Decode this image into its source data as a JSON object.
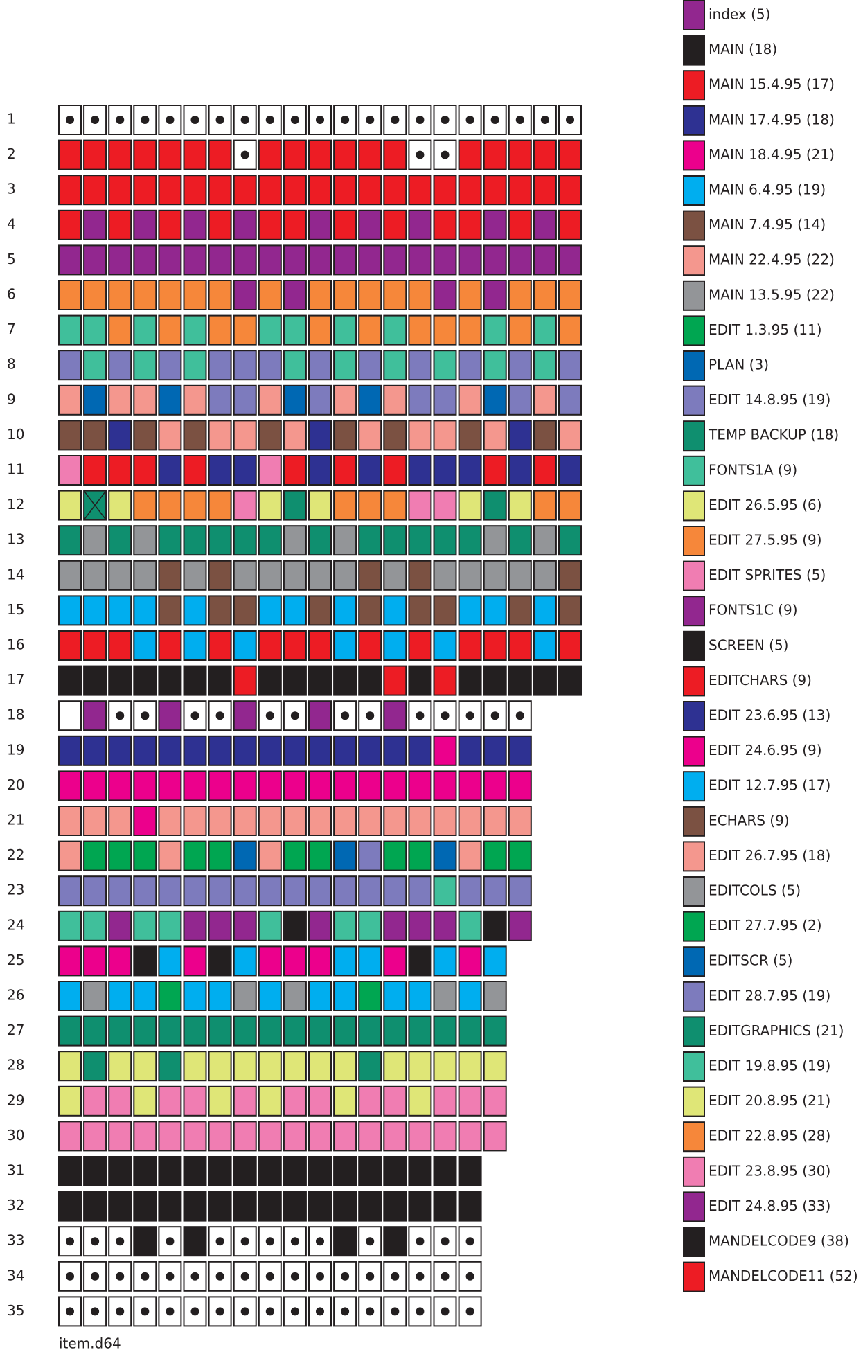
{
  "legend": [
    {
      "label": "index (5)",
      "color": "#92278f"
    },
    {
      "label": "MAIN (18)",
      "color": "#231f20"
    },
    {
      "label": "MAIN 15.4.95 (17)",
      "color": "#ed1c24"
    },
    {
      "label": "MAIN 17.4.95 (18)",
      "color": "#2e3192"
    },
    {
      "label": "MAIN 18.4.95 (21)",
      "color": "#ec008c"
    },
    {
      "label": "MAIN 6.4.95 (19)",
      "color": "#00aeef"
    },
    {
      "label": "MAIN 7.4.95 (14)",
      "color": "#7b5142"
    },
    {
      "label": "MAIN 22.4.95 (22)",
      "color": "#f4978e"
    },
    {
      "label": "MAIN 13.5.95 (22)",
      "color": "#939598"
    },
    {
      "label": "EDIT 1.3.95 (11)",
      "color": "#00a651"
    },
    {
      "label": "PLAN (3)",
      "color": "#0068b3"
    },
    {
      "label": "EDIT 14.8.95 (19)",
      "color": "#7d7bbd"
    },
    {
      "label": "TEMP BACKUP (18)",
      "color": "#0f8f6f"
    },
    {
      "label": "FONTS1A (9)",
      "color": "#40bf9b"
    },
    {
      "label": "EDIT 26.5.95 (6)",
      "color": "#dfe677"
    },
    {
      "label": "EDIT 27.5.95 (9)",
      "color": "#f6873a"
    },
    {
      "label": "EDIT SPRITES (5)",
      "color": "#f07db2"
    },
    {
      "label": "FONTS1C (9)",
      "color": "#92278f"
    },
    {
      "label": "SCREEN (5)",
      "color": "#231f20"
    },
    {
      "label": "EDITCHARS (9)",
      "color": "#ed1c24"
    },
    {
      "label": "EDIT 23.6.95 (13)",
      "color": "#2e3192"
    },
    {
      "label": "EDIT 24.6.95 (9)",
      "color": "#ec008c"
    },
    {
      "label": "EDIT 12.7.95 (17)",
      "color": "#00aeef"
    },
    {
      "label": "ECHARS (9)",
      "color": "#7b5142"
    },
    {
      "label": "EDIT 26.7.95 (18)",
      "color": "#f4978e"
    },
    {
      "label": "EDITCOLS (5)",
      "color": "#939598"
    },
    {
      "label": "EDIT 27.7.95 (2)",
      "color": "#00a651"
    },
    {
      "label": "EDITSCR (5)",
      "color": "#0068b3"
    },
    {
      "label": "EDIT 28.7.95 (19)",
      "color": "#7d7bbd"
    },
    {
      "label": "EDITGRAPHICS (21)",
      "color": "#0f8f6f"
    },
    {
      "label": "EDIT 19.8.95 (19)",
      "color": "#40bf9b"
    },
    {
      "label": "EDIT 20.8.95 (21)",
      "color": "#dfe677"
    },
    {
      "label": "EDIT 22.8.95 (28)",
      "color": "#f6873a"
    },
    {
      "label": "EDIT 23.8.95 (30)",
      "color": "#f07db2"
    },
    {
      "label": "EDIT 24.8.95 (33)",
      "color": "#92278f"
    },
    {
      "label": "MANDELCODE9 (38)",
      "color": "#231f20"
    },
    {
      "label": "MANDELCODE11 (52)",
      "color": "#ed1c24"
    }
  ],
  "rows": [
    {
      "label": "1",
      "cells": [
        null,
        null,
        null,
        null,
        null,
        null,
        null,
        null,
        null,
        null,
        null,
        null,
        null,
        null,
        null,
        null,
        null,
        null,
        null,
        null,
        null
      ]
    },
    {
      "label": "2",
      "cells": [
        "#ed1c24",
        "#ed1c24",
        "#ed1c24",
        "#ed1c24",
        "#ed1c24",
        "#ed1c24",
        "#ed1c24",
        null,
        "#ed1c24",
        "#ed1c24",
        "#ed1c24",
        "#ed1c24",
        "#ed1c24",
        "#ed1c24",
        null,
        null,
        "#ed1c24",
        "#ed1c24",
        "#ed1c24",
        "#ed1c24",
        "#ed1c24"
      ]
    },
    {
      "label": "3",
      "cells": [
        "#ed1c24",
        "#ed1c24",
        "#ed1c24",
        "#ed1c24",
        "#ed1c24",
        "#ed1c24",
        "#ed1c24",
        "#ed1c24",
        "#ed1c24",
        "#ed1c24",
        "#ed1c24",
        "#ed1c24",
        "#ed1c24",
        "#ed1c24",
        "#ed1c24",
        "#ed1c24",
        "#ed1c24",
        "#ed1c24",
        "#ed1c24",
        "#ed1c24",
        "#ed1c24"
      ]
    },
    {
      "label": "4",
      "cells": [
        "#ed1c24",
        "#92278f",
        "#ed1c24",
        "#92278f",
        "#ed1c24",
        "#92278f",
        "#ed1c24",
        "#92278f",
        "#ed1c24",
        "#ed1c24",
        "#92278f",
        "#ed1c24",
        "#92278f",
        "#ed1c24",
        "#92278f",
        "#ed1c24",
        "#ed1c24",
        "#92278f",
        "#ed1c24",
        "#92278f",
        "#ed1c24"
      ]
    },
    {
      "label": "5",
      "cells": [
        "#92278f",
        "#92278f",
        "#92278f",
        "#92278f",
        "#92278f",
        "#92278f",
        "#92278f",
        "#92278f",
        "#92278f",
        "#92278f",
        "#92278f",
        "#92278f",
        "#92278f",
        "#92278f",
        "#92278f",
        "#92278f",
        "#92278f",
        "#92278f",
        "#92278f",
        "#92278f",
        "#92278f"
      ]
    },
    {
      "label": "6",
      "cells": [
        "#f6873a",
        "#f6873a",
        "#f6873a",
        "#f6873a",
        "#f6873a",
        "#f6873a",
        "#f6873a",
        "#92278f",
        "#f6873a",
        "#92278f",
        "#f6873a",
        "#f6873a",
        "#f6873a",
        "#f6873a",
        "#f6873a",
        "#92278f",
        "#f6873a",
        "#92278f",
        "#f6873a",
        "#f6873a",
        "#f6873a"
      ]
    },
    {
      "label": "7",
      "cells": [
        "#40bf9b",
        "#40bf9b",
        "#f6873a",
        "#40bf9b",
        "#f6873a",
        "#40bf9b",
        "#f6873a",
        "#f6873a",
        "#40bf9b",
        "#40bf9b",
        "#f6873a",
        "#40bf9b",
        "#f6873a",
        "#40bf9b",
        "#f6873a",
        "#f6873a",
        "#f6873a",
        "#40bf9b",
        "#f6873a",
        "#40bf9b",
        "#f6873a"
      ]
    },
    {
      "label": "8",
      "cells": [
        "#7d7bbd",
        "#40bf9b",
        "#7d7bbd",
        "#40bf9b",
        "#7d7bbd",
        "#40bf9b",
        "#7d7bbd",
        "#7d7bbd",
        "#7d7bbd",
        "#40bf9b",
        "#7d7bbd",
        "#40bf9b",
        "#7d7bbd",
        "#40bf9b",
        "#7d7bbd",
        "#40bf9b",
        "#7d7bbd",
        "#40bf9b",
        "#7d7bbd",
        "#40bf9b",
        "#7d7bbd"
      ]
    },
    {
      "label": "9",
      "cells": [
        "#f4978e",
        "#0068b3",
        "#f4978e",
        "#f4978e",
        "#0068b3",
        "#f4978e",
        "#7d7bbd",
        "#7d7bbd",
        "#f4978e",
        "#0068b3",
        "#7d7bbd",
        "#f4978e",
        "#0068b3",
        "#f4978e",
        "#7d7bbd",
        "#7d7bbd",
        "#f4978e",
        "#0068b3",
        "#7d7bbd",
        "#f4978e",
        "#7d7bbd"
      ]
    },
    {
      "label": "10",
      "cells": [
        "#7b5142",
        "#7b5142",
        "#2e3192",
        "#7b5142",
        "#f4978e",
        "#7b5142",
        "#f4978e",
        "#f4978e",
        "#7b5142",
        "#f4978e",
        "#2e3192",
        "#7b5142",
        "#f4978e",
        "#7b5142",
        "#f4978e",
        "#f4978e",
        "#7b5142",
        "#f4978e",
        "#2e3192",
        "#7b5142",
        "#f4978e"
      ]
    },
    {
      "label": "11",
      "cells": [
        "#f07db2",
        "#ed1c24",
        "#ed1c24",
        "#ed1c24",
        "#2e3192",
        "#ed1c24",
        "#2e3192",
        "#2e3192",
        "#f07db2",
        "#ed1c24",
        "#2e3192",
        "#ed1c24",
        "#2e3192",
        "#ed1c24",
        "#2e3192",
        "#2e3192",
        "#2e3192",
        "#ed1c24",
        "#2e3192",
        "#ed1c24",
        "#2e3192"
      ]
    },
    {
      "label": "12",
      "cells": [
        "#dfe677",
        "#0f8f6f",
        "#dfe677",
        "#f6873a",
        "#f6873a",
        "#f6873a",
        "#f6873a",
        "#f07db2",
        "#dfe677",
        "#0f8f6f",
        "#dfe677",
        "#f6873a",
        "#f6873a",
        "#f6873a",
        "#f07db2",
        "#f07db2",
        "#dfe677",
        "#0f8f6f",
        "#dfe677",
        "#f6873a",
        "#f6873a"
      ],
      "crossed": [
        1
      ]
    },
    {
      "label": "13",
      "cells": [
        "#0f8f6f",
        "#939598",
        "#0f8f6f",
        "#939598",
        "#0f8f6f",
        "#0f8f6f",
        "#0f8f6f",
        "#0f8f6f",
        "#0f8f6f",
        "#939598",
        "#0f8f6f",
        "#939598",
        "#0f8f6f",
        "#0f8f6f",
        "#0f8f6f",
        "#0f8f6f",
        "#0f8f6f",
        "#939598",
        "#0f8f6f",
        "#939598",
        "#0f8f6f"
      ]
    },
    {
      "label": "14",
      "cells": [
        "#939598",
        "#939598",
        "#939598",
        "#939598",
        "#7b5142",
        "#939598",
        "#7b5142",
        "#939598",
        "#939598",
        "#939598",
        "#939598",
        "#939598",
        "#7b5142",
        "#939598",
        "#7b5142",
        "#939598",
        "#939598",
        "#939598",
        "#939598",
        "#939598",
        "#7b5142"
      ]
    },
    {
      "label": "15",
      "cells": [
        "#00aeef",
        "#00aeef",
        "#00aeef",
        "#00aeef",
        "#7b5142",
        "#00aeef",
        "#7b5142",
        "#7b5142",
        "#00aeef",
        "#00aeef",
        "#7b5142",
        "#00aeef",
        "#7b5142",
        "#00aeef",
        "#7b5142",
        "#7b5142",
        "#00aeef",
        "#00aeef",
        "#7b5142",
        "#00aeef",
        "#7b5142"
      ]
    },
    {
      "label": "16",
      "cells": [
        "#ed1c24",
        "#ed1c24",
        "#ed1c24",
        "#00aeef",
        "#ed1c24",
        "#00aeef",
        "#ed1c24",
        "#00aeef",
        "#ed1c24",
        "#ed1c24",
        "#ed1c24",
        "#00aeef",
        "#ed1c24",
        "#00aeef",
        "#ed1c24",
        "#00aeef",
        "#ed1c24",
        "#ed1c24",
        "#ed1c24",
        "#00aeef",
        "#ed1c24"
      ]
    },
    {
      "label": "17",
      "cells": [
        "#231f20",
        "#231f20",
        "#231f20",
        "#231f20",
        "#231f20",
        "#231f20",
        "#231f20",
        "#ed1c24",
        "#231f20",
        "#231f20",
        "#231f20",
        "#231f20",
        "#231f20",
        "#ed1c24",
        "#231f20",
        "#ed1c24",
        "#231f20",
        "#231f20",
        "#231f20",
        "#231f20",
        "#231f20"
      ]
    },
    {
      "label": "18",
      "cells": [
        "#ffffff",
        "#92278f",
        null,
        null,
        "#92278f",
        null,
        null,
        "#92278f",
        null,
        null,
        "#92278f",
        null,
        null,
        "#92278f",
        null,
        null,
        null,
        null,
        null
      ]
    },
    {
      "label": "19",
      "cells": [
        "#2e3192",
        "#2e3192",
        "#2e3192",
        "#2e3192",
        "#2e3192",
        "#2e3192",
        "#2e3192",
        "#2e3192",
        "#2e3192",
        "#2e3192",
        "#2e3192",
        "#2e3192",
        "#2e3192",
        "#2e3192",
        "#2e3192",
        "#ec008c",
        "#2e3192",
        "#2e3192",
        "#2e3192"
      ]
    },
    {
      "label": "20",
      "cells": [
        "#ec008c",
        "#ec008c",
        "#ec008c",
        "#ec008c",
        "#ec008c",
        "#ec008c",
        "#ec008c",
        "#ec008c",
        "#ec008c",
        "#ec008c",
        "#ec008c",
        "#ec008c",
        "#ec008c",
        "#ec008c",
        "#ec008c",
        "#ec008c",
        "#ec008c",
        "#ec008c",
        "#ec008c"
      ]
    },
    {
      "label": "21",
      "cells": [
        "#f4978e",
        "#f4978e",
        "#f4978e",
        "#ec008c",
        "#f4978e",
        "#f4978e",
        "#f4978e",
        "#f4978e",
        "#f4978e",
        "#f4978e",
        "#f4978e",
        "#f4978e",
        "#f4978e",
        "#f4978e",
        "#f4978e",
        "#f4978e",
        "#f4978e",
        "#f4978e",
        "#f4978e"
      ]
    },
    {
      "label": "22",
      "cells": [
        "#f4978e",
        "#00a651",
        "#00a651",
        "#00a651",
        "#f4978e",
        "#00a651",
        "#00a651",
        "#0068b3",
        "#f4978e",
        "#00a651",
        "#00a651",
        "#0068b3",
        "#7d7bbd",
        "#00a651",
        "#00a651",
        "#0068b3",
        "#f4978e",
        "#00a651",
        "#00a651"
      ]
    },
    {
      "label": "23",
      "cells": [
        "#7d7bbd",
        "#7d7bbd",
        "#7d7bbd",
        "#7d7bbd",
        "#7d7bbd",
        "#7d7bbd",
        "#7d7bbd",
        "#7d7bbd",
        "#7d7bbd",
        "#7d7bbd",
        "#7d7bbd",
        "#7d7bbd",
        "#7d7bbd",
        "#7d7bbd",
        "#7d7bbd",
        "#40bf9b",
        "#7d7bbd",
        "#7d7bbd",
        "#7d7bbd"
      ]
    },
    {
      "label": "24",
      "cells": [
        "#40bf9b",
        "#40bf9b",
        "#92278f",
        "#40bf9b",
        "#40bf9b",
        "#92278f",
        "#92278f",
        "#92278f",
        "#40bf9b",
        "#231f20",
        "#92278f",
        "#40bf9b",
        "#40bf9b",
        "#92278f",
        "#92278f",
        "#92278f",
        "#40bf9b",
        "#231f20",
        "#92278f"
      ]
    },
    {
      "label": "25",
      "cells": [
        "#ec008c",
        "#ec008c",
        "#ec008c",
        "#231f20",
        "#00aeef",
        "#ec008c",
        "#231f20",
        "#00aeef",
        "#ec008c",
        "#ec008c",
        "#ec008c",
        "#00aeef",
        "#00aeef",
        "#ec008c",
        "#231f20",
        "#00aeef",
        "#ec008c",
        "#00aeef"
      ]
    },
    {
      "label": "26",
      "cells": [
        "#00aeef",
        "#939598",
        "#00aeef",
        "#00aeef",
        "#00a651",
        "#00aeef",
        "#00aeef",
        "#939598",
        "#00aeef",
        "#939598",
        "#00aeef",
        "#00aeef",
        "#00a651",
        "#00aeef",
        "#00aeef",
        "#939598",
        "#00aeef",
        "#939598"
      ]
    },
    {
      "label": "27",
      "cells": [
        "#0f8f6f",
        "#0f8f6f",
        "#0f8f6f",
        "#0f8f6f",
        "#0f8f6f",
        "#0f8f6f",
        "#0f8f6f",
        "#0f8f6f",
        "#0f8f6f",
        "#0f8f6f",
        "#0f8f6f",
        "#0f8f6f",
        "#0f8f6f",
        "#0f8f6f",
        "#0f8f6f",
        "#0f8f6f",
        "#0f8f6f",
        "#0f8f6f"
      ]
    },
    {
      "label": "28",
      "cells": [
        "#dfe677",
        "#0f8f6f",
        "#dfe677",
        "#dfe677",
        "#0f8f6f",
        "#dfe677",
        "#dfe677",
        "#dfe677",
        "#dfe677",
        "#dfe677",
        "#dfe677",
        "#dfe677",
        "#0f8f6f",
        "#dfe677",
        "#dfe677",
        "#dfe677",
        "#dfe677",
        "#dfe677"
      ]
    },
    {
      "label": "29",
      "cells": [
        "#dfe677",
        "#f07db2",
        "#f07db2",
        "#dfe677",
        "#f07db2",
        "#f07db2",
        "#dfe677",
        "#f07db2",
        "#dfe677",
        "#f07db2",
        "#f07db2",
        "#dfe677",
        "#f07db2",
        "#f07db2",
        "#dfe677",
        "#f07db2",
        "#f07db2",
        "#f07db2"
      ]
    },
    {
      "label": "30",
      "cells": [
        "#f07db2",
        "#f07db2",
        "#f07db2",
        "#f07db2",
        "#f07db2",
        "#f07db2",
        "#f07db2",
        "#f07db2",
        "#f07db2",
        "#f07db2",
        "#f07db2",
        "#f07db2",
        "#f07db2",
        "#f07db2",
        "#f07db2",
        "#f07db2",
        "#f07db2",
        "#f07db2"
      ]
    },
    {
      "label": "31",
      "cells": [
        "#231f20",
        "#231f20",
        "#231f20",
        "#231f20",
        "#231f20",
        "#231f20",
        "#231f20",
        "#231f20",
        "#231f20",
        "#231f20",
        "#231f20",
        "#231f20",
        "#231f20",
        "#231f20",
        "#231f20",
        "#231f20",
        "#231f20"
      ]
    },
    {
      "label": "32",
      "cells": [
        "#231f20",
        "#231f20",
        "#231f20",
        "#231f20",
        "#231f20",
        "#231f20",
        "#231f20",
        "#231f20",
        "#231f20",
        "#231f20",
        "#231f20",
        "#231f20",
        "#231f20",
        "#231f20",
        "#231f20",
        "#231f20",
        "#231f20"
      ]
    },
    {
      "label": "33",
      "cells": [
        null,
        null,
        null,
        "#231f20",
        null,
        "#231f20",
        null,
        null,
        null,
        null,
        null,
        "#231f20",
        null,
        "#231f20",
        null,
        null,
        null
      ]
    },
    {
      "label": "34",
      "cells": [
        null,
        null,
        null,
        null,
        null,
        null,
        null,
        null,
        null,
        null,
        null,
        null,
        null,
        null,
        null,
        null,
        null
      ]
    },
    {
      "label": "35",
      "cells": [
        null,
        null,
        null,
        null,
        null,
        null,
        null,
        null,
        null,
        null,
        null,
        null,
        null,
        null,
        null,
        null,
        null
      ]
    }
  ],
  "footer": "item.d64"
}
